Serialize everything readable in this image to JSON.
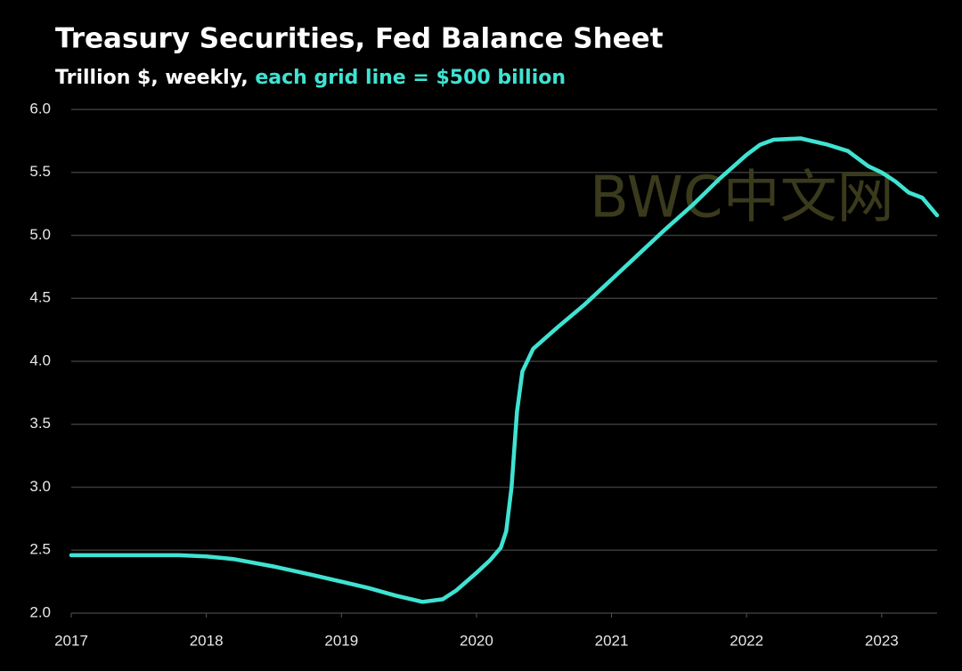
{
  "chart_data": {
    "type": "line",
    "title": "Treasury Securities, Fed Balance Sheet",
    "subtitle": "Trillion $, weekly,",
    "subtitle_highlight": "each grid line = $500 billion",
    "watermark": "BWC中文网",
    "x": [
      2017.0,
      2017.5,
      2017.8,
      2018.0,
      2018.2,
      2018.5,
      2018.8,
      2019.0,
      2019.2,
      2019.4,
      2019.6,
      2019.75,
      2019.85,
      2020.0,
      2020.1,
      2020.18,
      2020.22,
      2020.26,
      2020.3,
      2020.34,
      2020.42,
      2020.6,
      2020.8,
      2021.0,
      2021.2,
      2021.4,
      2021.6,
      2021.8,
      2022.0,
      2022.1,
      2022.2,
      2022.4,
      2022.6,
      2022.75,
      2022.9,
      2023.0,
      2023.1,
      2023.2,
      2023.3,
      2023.41
    ],
    "series": [
      {
        "name": "Treasury Securities",
        "color": "#3fe3d2",
        "values": [
          2.46,
          2.46,
          2.46,
          2.45,
          2.43,
          2.37,
          2.3,
          2.25,
          2.2,
          2.14,
          2.09,
          2.11,
          2.18,
          2.32,
          2.42,
          2.52,
          2.65,
          3.0,
          3.6,
          3.92,
          4.1,
          4.27,
          4.45,
          4.65,
          4.85,
          5.05,
          5.24,
          5.45,
          5.64,
          5.72,
          5.76,
          5.77,
          5.72,
          5.67,
          5.55,
          5.5,
          5.43,
          5.34,
          5.3,
          5.16
        ]
      }
    ],
    "xlim": [
      2017,
      2023.41
    ],
    "xticks": [
      2017,
      2018,
      2019,
      2020,
      2021,
      2022,
      2023
    ],
    "ylim": [
      2.0,
      6.0
    ],
    "yticks": [
      {
        "value": 2.0,
        "label": "2.0"
      },
      {
        "value": 2.5,
        "label": "2.5"
      },
      {
        "value": 3.0,
        "label": "3.0"
      },
      {
        "value": 3.5,
        "label": "3.5"
      },
      {
        "value": 4.0,
        "label": "4.0"
      },
      {
        "value": 4.5,
        "label": "4.5"
      },
      {
        "value": 5.0,
        "label": "5.0"
      },
      {
        "value": 5.5,
        "label": "5.5"
      },
      {
        "value": 6.0,
        "label": "6.0"
      }
    ],
    "grid": true
  }
}
